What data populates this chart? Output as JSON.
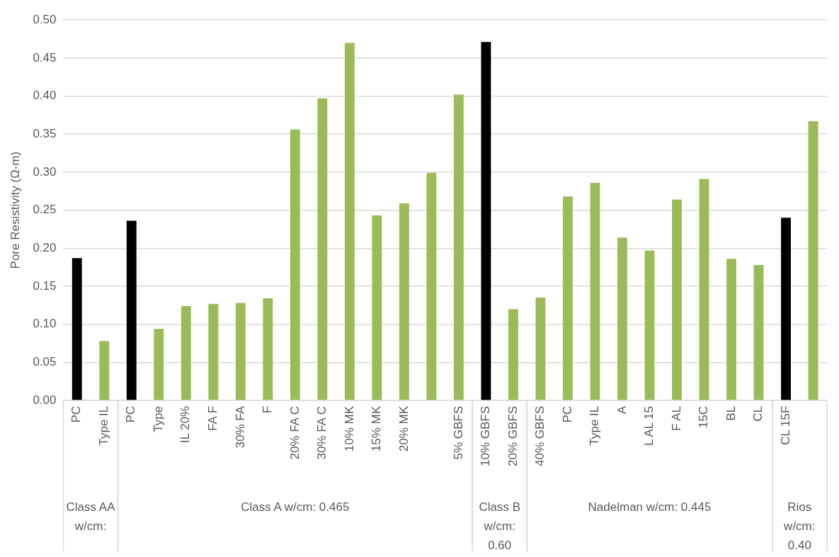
{
  "chart_data": {
    "type": "bar",
    "ylabel": "Pore Resistivity (Ω-m)",
    "categories": [
      "PC",
      "Type IL",
      "PC",
      "Type",
      "IL 20%",
      "FA F",
      "30% FA",
      "F",
      "20% FA C",
      "30% FA C",
      "10% MK",
      "15% MK",
      "20% MK",
      null,
      "5% GBFS",
      "10% GBFS",
      "20% GBFS",
      "40% GBFS",
      "PC",
      "Type IL",
      "A",
      "L AL 15",
      "F AL",
      "15C",
      "BL",
      "CL",
      "CL 15F",
      null
    ],
    "values": [
      0.187,
      0.078,
      0.236,
      0.094,
      0.124,
      0.127,
      0.128,
      0.134,
      0.356,
      0.397,
      0.47,
      0.243,
      0.259,
      0.299,
      0.402,
      0.471,
      0.12,
      0.135,
      0.268,
      0.286,
      0.214,
      0.197,
      0.264,
      0.291,
      0.186,
      0.178,
      0.24,
      0.367
    ],
    "colors": [
      "#000000",
      "#9bbb59",
      "#000000",
      "#9bbb59",
      "#9bbb59",
      "#9bbb59",
      "#9bbb59",
      "#9bbb59",
      "#9bbb59",
      "#9bbb59",
      "#9bbb59",
      "#9bbb59",
      "#9bbb59",
      "#9bbb59",
      "#9bbb59",
      "#000000",
      "#9bbb59",
      "#9bbb59",
      "#9bbb59",
      "#9bbb59",
      "#9bbb59",
      "#9bbb59",
      "#9bbb59",
      "#9bbb59",
      "#9bbb59",
      "#9bbb59",
      "#000000",
      "#9bbb59"
    ],
    "ylim": [
      0,
      0.5
    ],
    "yticks": [
      {
        "value": 0,
        "label": "0.00"
      },
      {
        "value": 0.05,
        "label": "0.05"
      },
      {
        "value": 0.1,
        "label": "0.10"
      },
      {
        "value": 0.15,
        "label": "0.15"
      },
      {
        "value": 0.2,
        "label": "0.20"
      },
      {
        "value": 0.25,
        "label": "0.25"
      },
      {
        "value": 0.3,
        "label": "0.30"
      },
      {
        "value": 0.35,
        "label": "0.35"
      },
      {
        "value": 0.4,
        "label": "0.40"
      },
      {
        "value": 0.45,
        "label": "0.45"
      },
      {
        "value": 0.5,
        "label": "0.50"
      }
    ],
    "grid": "y",
    "annotations": [
      "Class AA w/cm:",
      "Class A w/cm: 0.465",
      "Class B w/cm: 0.60",
      "Nadelman w/cm: 0.445",
      "Rios w/cm: 0.40"
    ]
  }
}
